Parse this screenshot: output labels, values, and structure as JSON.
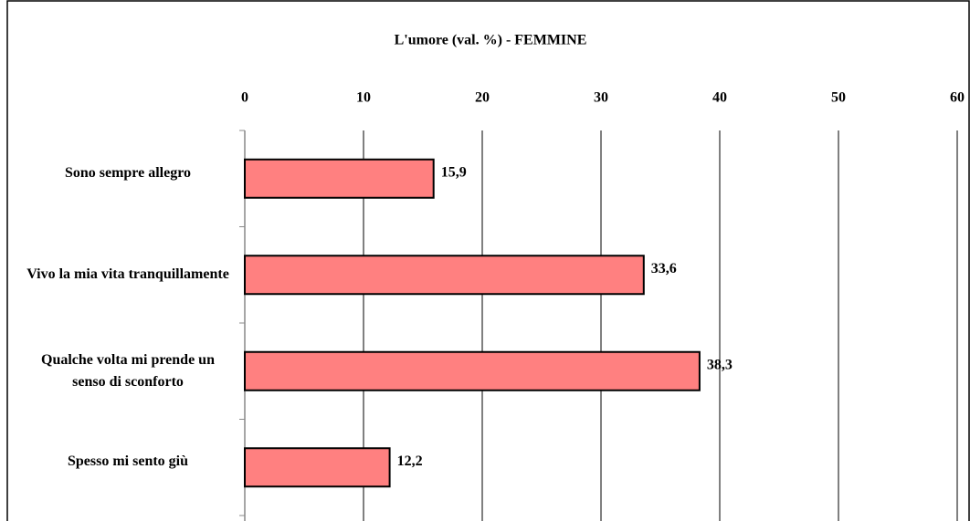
{
  "chart_data": {
    "type": "bar",
    "orientation": "horizontal",
    "title": "L'umore (val. %) - FEMMINE",
    "categories": [
      "Sono sempre allegro",
      "Vivo la mia vita tranquillamente",
      "Qualche volta mi prende un senso di sconforto",
      "Spesso mi sento giù"
    ],
    "values": [
      15.9,
      33.6,
      38.3,
      12.2
    ],
    "value_labels": [
      "15,9",
      "33,6",
      "38,3",
      "12,2"
    ],
    "color": "#ff8080",
    "xlim": [
      0,
      60
    ],
    "xticks": [
      0,
      10,
      20,
      30,
      40,
      50,
      60
    ],
    "grid": true
  }
}
